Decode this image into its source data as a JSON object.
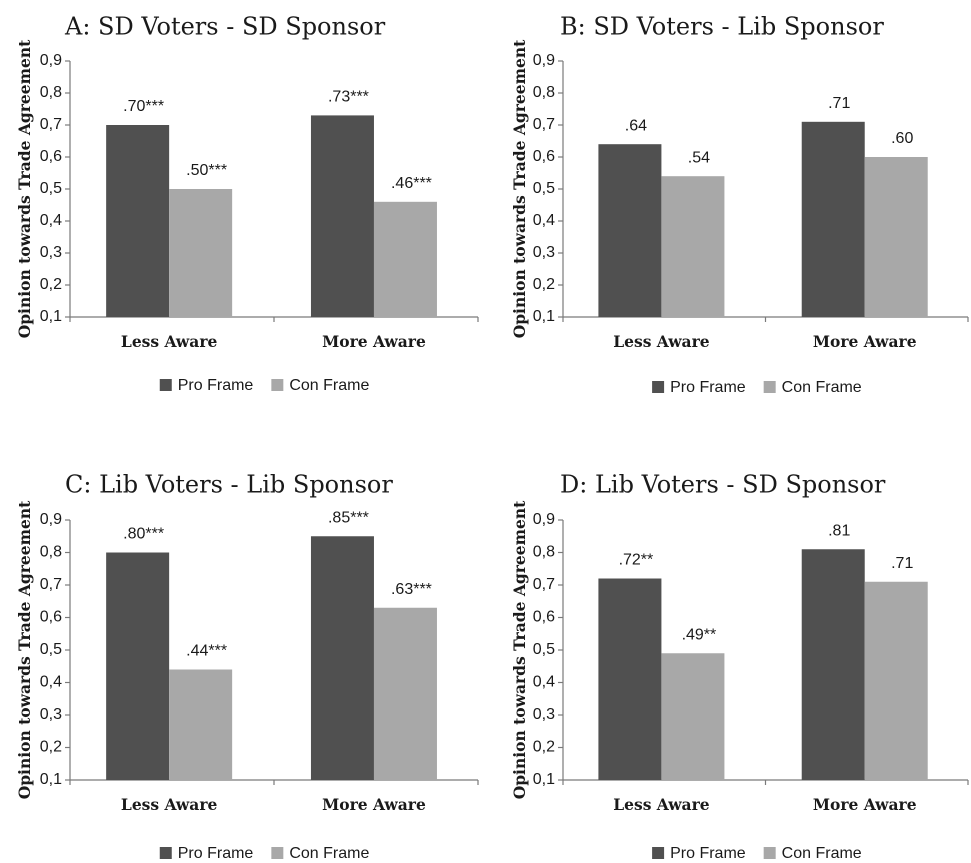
{
  "colors": {
    "pro_frame": "#505050",
    "con_frame": "#a8a8a8",
    "axis": "#7a7a7a"
  },
  "chart_data": [
    {
      "type": "bar",
      "title": "A: SD Voters - SD Sponsor",
      "ylabel": "Opinion towards Trade Agreement",
      "xlabel": "",
      "ylim": [
        0.1,
        0.9
      ],
      "yticks": [
        "0,1",
        "0,2",
        "0,3",
        "0,4",
        "0,5",
        "0,6",
        "0,7",
        "0,8",
        "0,9"
      ],
      "categories": [
        "Less Aware",
        "More Aware"
      ],
      "series": [
        {
          "name": "Pro Frame",
          "values": [
            0.7,
            0.73
          ],
          "labels": [
            ".70***",
            ".73***"
          ]
        },
        {
          "name": "Con Frame",
          "values": [
            0.5,
            0.46
          ],
          "labels": [
            ".50***",
            ".46***"
          ]
        }
      ],
      "legend": "bottom",
      "grid": false
    },
    {
      "type": "bar",
      "title": "B: SD Voters - Lib Sponsor",
      "ylabel": "Opinion towards Trade Agreement",
      "xlabel": "",
      "ylim": [
        0.1,
        0.9
      ],
      "yticks": [
        "0,1",
        "0,2",
        "0,3",
        "0,4",
        "0,5",
        "0,6",
        "0,7",
        "0,8",
        "0,9"
      ],
      "categories": [
        "Less Aware",
        "More Aware"
      ],
      "series": [
        {
          "name": "Pro Frame",
          "values": [
            0.64,
            0.71
          ],
          "labels": [
            ".64",
            ".71"
          ]
        },
        {
          "name": "Con Frame",
          "values": [
            0.54,
            0.6
          ],
          "labels": [
            ".54",
            ".60"
          ]
        }
      ],
      "legend": "bottom",
      "grid": false
    },
    {
      "type": "bar",
      "title": "C: Lib Voters - Lib Sponsor",
      "ylabel": "Opinion towards Trade Agreement",
      "xlabel": "",
      "ylim": [
        0.1,
        0.9
      ],
      "yticks": [
        "0,1",
        "0,2",
        "0,3",
        "0,4",
        "0,5",
        "0,6",
        "0,7",
        "0,8",
        "0,9"
      ],
      "categories": [
        "Less Aware",
        "More Aware"
      ],
      "series": [
        {
          "name": "Pro Frame",
          "values": [
            0.8,
            0.85
          ],
          "labels": [
            ".80***",
            ".85***"
          ]
        },
        {
          "name": "Con Frame",
          "values": [
            0.44,
            0.63
          ],
          "labels": [
            ".44***",
            ".63***"
          ]
        }
      ],
      "legend": "bottom",
      "grid": false
    },
    {
      "type": "bar",
      "title": "D: Lib Voters - SD Sponsor",
      "ylabel": "Opinion towards Trade Agreement",
      "xlabel": "",
      "ylim": [
        0.1,
        0.9
      ],
      "yticks": [
        "0,1",
        "0,2",
        "0,3",
        "0,4",
        "0,5",
        "0,6",
        "0,7",
        "0,8",
        "0,9"
      ],
      "categories": [
        "Less Aware",
        "More Aware"
      ],
      "series": [
        {
          "name": "Pro Frame",
          "values": [
            0.72,
            0.81
          ],
          "labels": [
            ".72**",
            ".81"
          ]
        },
        {
          "name": "Con Frame",
          "values": [
            0.49,
            0.71
          ],
          "labels": [
            ".49**",
            ".71"
          ]
        }
      ],
      "legend": "bottom",
      "grid": false
    }
  ]
}
